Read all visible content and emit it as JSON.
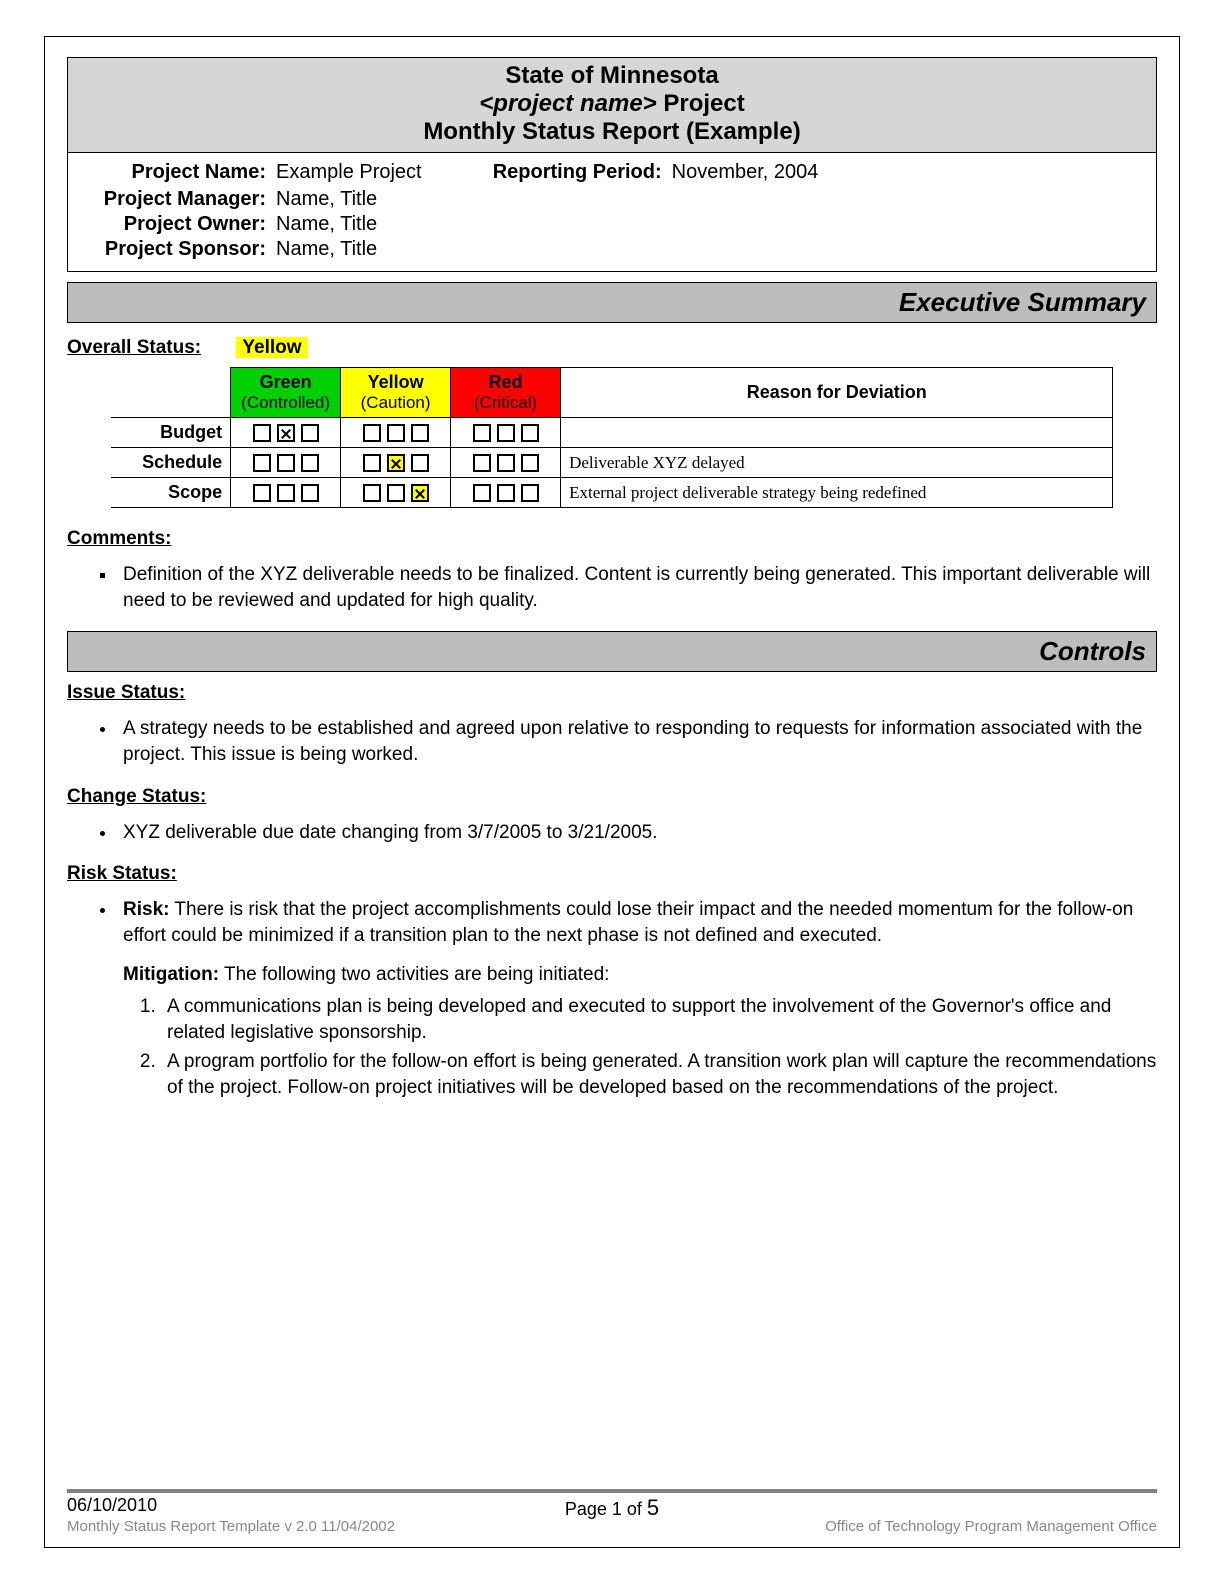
{
  "header": {
    "line1": "State of Minnesota",
    "line2_ital": "<project name>",
    "line2_rest": " Project",
    "line3": "Monthly Status Report (Example)"
  },
  "meta": {
    "project_name_label": "Project Name:",
    "project_name": "Example Project",
    "reporting_period_label": "Reporting Period:",
    "reporting_period": "November, 2004",
    "project_manager_label": "Project Manager:",
    "project_manager": "Name, Title",
    "project_owner_label": "Project Owner:",
    "project_owner": "Name, Title",
    "project_sponsor_label": "Project Sponsor:",
    "project_sponsor": "Name, Title"
  },
  "sections": {
    "executive_summary": "Executive Summary",
    "controls": "Controls"
  },
  "overall_status": {
    "label": "Overall Status:",
    "value": "Yellow",
    "value_bg": "#ffff00"
  },
  "status_table": {
    "columns": {
      "green": {
        "title": "Green",
        "sub": "(Controlled)",
        "bg": "#00d000"
      },
      "yellow": {
        "title": "Yellow",
        "sub": "(Caution)",
        "bg": "#ffff00"
      },
      "red": {
        "title": "Red",
        "sub": "(Critical)",
        "bg": "#ff0000"
      },
      "reason": "Reason for Deviation"
    },
    "rows": [
      {
        "label": "Budget",
        "green": [
          0,
          1,
          0
        ],
        "yellow": [
          0,
          0,
          0
        ],
        "red": [
          0,
          0,
          0
        ],
        "reason": ""
      },
      {
        "label": "Schedule",
        "green": [
          0,
          0,
          0
        ],
        "yellow": [
          0,
          1,
          0
        ],
        "red": [
          0,
          0,
          0
        ],
        "reason": "Deliverable XYZ delayed"
      },
      {
        "label": "Scope",
        "green": [
          0,
          0,
          0
        ],
        "yellow": [
          0,
          0,
          1
        ],
        "red": [
          0,
          0,
          0
        ],
        "reason": "External project deliverable strategy being redefined"
      }
    ],
    "yellow_highlight": true
  },
  "comments": {
    "heading": "Comments:",
    "items": [
      "Definition of the XYZ deliverable needs to be finalized.  Content is currently being generated.  This important deliverable will need to be reviewed and updated for high quality."
    ]
  },
  "issue_status": {
    "heading": "Issue Status:",
    "items": [
      "A strategy needs to be established and agreed upon relative to responding to requests for information associated with the project.  This issue is being worked."
    ]
  },
  "change_status": {
    "heading": "Change Status:",
    "items": [
      "XYZ deliverable due date changing from 3/7/2005 to 3/21/2005."
    ]
  },
  "risk_status": {
    "heading": "Risk Status:",
    "risk_label": "Risk:",
    "risk_text": " There is risk that the project accomplishments could lose their impact and the needed momentum for the follow-on effort could be minimized if a transition plan to the next phase is not defined and executed.",
    "mitigation_label": "Mitigation:",
    "mitigation_intro": "  The following two activities are being initiated:",
    "mitigation_items": [
      "A communications plan is being developed and executed to support the involvement of the Governor's office and related legislative sponsorship.",
      "A program portfolio for the follow-on effort is being generated. A transition work plan will capture the recommendations of the project. Follow-on project initiatives will be developed based on the recommendations of the project."
    ]
  },
  "footer": {
    "date": "06/10/2010",
    "page_prefix": "Page 1 of ",
    "page_total": "5",
    "template": "Monthly Status Report Template  v 2.0  11/04/2002",
    "office": "Office of Technology Program Management Office"
  },
  "colors": {
    "banner_bg": "#d6d6d6",
    "section_bg": "#bdbdbd"
  }
}
